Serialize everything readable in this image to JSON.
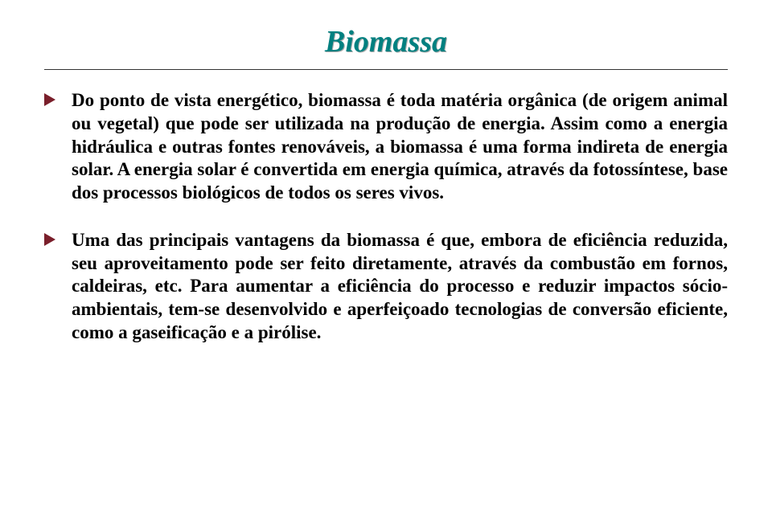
{
  "slide": {
    "title": "Biomassa",
    "title_color": "#008080",
    "title_fontsize": 38,
    "title_italic": true,
    "hr_color": "#333333",
    "background_color": "#ffffff",
    "bullet_marker_color": "#7a1f2b",
    "body_text_color": "#000000",
    "body_fontsize": 23,
    "body_fontweight": "bold",
    "items": [
      {
        "text": "Do ponto de vista energético, biomassa é toda matéria orgânica (de origem animal ou vegetal) que pode ser utilizada na produção de energia. Assim como a energia hidráulica e outras fontes renováveis, a biomassa é uma forma indireta de energia solar. A energia solar é convertida em energia química, através da fotossíntese, base dos processos biológicos de todos os seres vivos."
      },
      {
        "text": "Uma das principais vantagens da biomassa é que, embora de eficiência reduzida, seu aproveitamento pode ser feito diretamente, através da combustão em fornos, caldeiras, etc. Para aumentar a eficiência do processo e reduzir impactos sócio-ambientais, tem-se desenvolvido e aperfeiçoado tecnologias de conversão eficiente, como a gaseificação e a pirólise."
      }
    ]
  }
}
